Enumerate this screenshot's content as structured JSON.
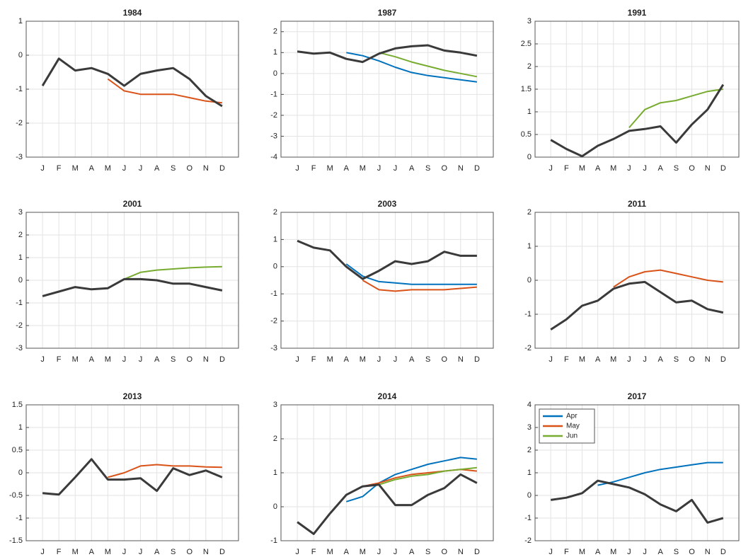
{
  "chart_data": [
    {
      "type": "line",
      "title": "1984",
      "categories": [
        "J",
        "F",
        "M",
        "A",
        "M",
        "J",
        "J",
        "A",
        "S",
        "O",
        "N",
        "D"
      ],
      "ylim": [
        -3,
        1
      ],
      "yticks": [
        -3,
        -2,
        -1,
        0,
        1
      ],
      "grid": true,
      "series": [
        {
          "color": "#d95319",
          "values": [
            null,
            null,
            null,
            null,
            -0.7,
            -1.05,
            -1.15,
            -1.15,
            -1.15,
            -1.25,
            -1.35,
            -1.4
          ]
        },
        {
          "color": "#3a3a3a",
          "values": [
            -0.9,
            -0.1,
            -0.45,
            -0.38,
            -0.55,
            -0.9,
            -0.55,
            -0.45,
            -0.38,
            -0.7,
            -1.2,
            -1.5
          ]
        }
      ]
    },
    {
      "type": "line",
      "title": "1987",
      "categories": [
        "J",
        "F",
        "M",
        "A",
        "M",
        "J",
        "J",
        "A",
        "S",
        "O",
        "N",
        "D"
      ],
      "ylim": [
        -4,
        2.5
      ],
      "yticks": [
        -4,
        -3,
        -2,
        -1,
        0,
        1,
        2
      ],
      "grid": true,
      "series": [
        {
          "color": "#0072bd",
          "values": [
            null,
            null,
            null,
            1.0,
            0.85,
            0.6,
            0.3,
            0.05,
            -0.1,
            -0.2,
            -0.3,
            -0.4
          ]
        },
        {
          "color": "#77ac30",
          "values": [
            null,
            null,
            null,
            null,
            null,
            1.0,
            0.8,
            0.55,
            0.35,
            0.15,
            0.0,
            -0.15
          ]
        },
        {
          "color": "#3a3a3a",
          "values": [
            1.05,
            0.95,
            1.0,
            0.7,
            0.55,
            0.95,
            1.2,
            1.3,
            1.35,
            1.1,
            1.0,
            0.85
          ]
        }
      ]
    },
    {
      "type": "line",
      "title": "1991",
      "categories": [
        "J",
        "F",
        "M",
        "A",
        "M",
        "J",
        "J",
        "A",
        "S",
        "O",
        "N",
        "D"
      ],
      "ylim": [
        0,
        3
      ],
      "yticks": [
        0,
        0.5,
        1,
        1.5,
        2,
        2.5,
        3
      ],
      "grid": true,
      "series": [
        {
          "color": "#77ac30",
          "values": [
            null,
            null,
            null,
            null,
            null,
            0.65,
            1.05,
            1.2,
            1.25,
            1.35,
            1.45,
            1.5
          ]
        },
        {
          "color": "#3a3a3a",
          "values": [
            0.38,
            0.18,
            0.02,
            0.25,
            0.4,
            0.58,
            0.62,
            0.68,
            0.32,
            0.72,
            1.05,
            1.6
          ]
        }
      ]
    },
    {
      "type": "line",
      "title": "2001",
      "categories": [
        "J",
        "F",
        "M",
        "A",
        "M",
        "J",
        "J",
        "A",
        "S",
        "O",
        "N",
        "D"
      ],
      "ylim": [
        -3,
        3
      ],
      "yticks": [
        -3,
        -2,
        -1,
        0,
        1,
        2,
        3
      ],
      "grid": true,
      "series": [
        {
          "color": "#77ac30",
          "values": [
            null,
            null,
            null,
            null,
            null,
            0.05,
            0.35,
            0.45,
            0.5,
            0.55,
            0.58,
            0.6
          ]
        },
        {
          "color": "#3a3a3a",
          "values": [
            -0.7,
            -0.5,
            -0.3,
            -0.4,
            -0.35,
            0.05,
            0.05,
            0.0,
            -0.15,
            -0.15,
            -0.3,
            -0.45
          ]
        }
      ]
    },
    {
      "type": "line",
      "title": "2003",
      "categories": [
        "J",
        "F",
        "M",
        "A",
        "M",
        "J",
        "J",
        "A",
        "S",
        "O",
        "N",
        "D"
      ],
      "ylim": [
        -3,
        2
      ],
      "yticks": [
        -3,
        -2,
        -1,
        0,
        1,
        2
      ],
      "grid": true,
      "series": [
        {
          "color": "#0072bd",
          "values": [
            null,
            null,
            null,
            0.1,
            -0.35,
            -0.55,
            -0.6,
            -0.65,
            -0.65,
            -0.65,
            -0.65,
            -0.65
          ]
        },
        {
          "color": "#d95319",
          "values": [
            null,
            null,
            null,
            null,
            -0.5,
            -0.85,
            -0.9,
            -0.85,
            -0.85,
            -0.85,
            -0.8,
            -0.75
          ]
        },
        {
          "color": "#3a3a3a",
          "values": [
            0.95,
            0.7,
            0.6,
            0.0,
            -0.45,
            -0.15,
            0.2,
            0.1,
            0.2,
            0.55,
            0.4,
            0.4
          ]
        }
      ]
    },
    {
      "type": "line",
      "title": "2011",
      "categories": [
        "J",
        "F",
        "M",
        "A",
        "M",
        "J",
        "J",
        "A",
        "S",
        "O",
        "N",
        "D"
      ],
      "ylim": [
        -2,
        2
      ],
      "yticks": [
        -2,
        -1,
        0,
        1,
        2
      ],
      "grid": true,
      "series": [
        {
          "color": "#d95319",
          "values": [
            null,
            null,
            null,
            null,
            -0.2,
            0.1,
            0.25,
            0.3,
            0.2,
            0.1,
            0.0,
            -0.05
          ]
        },
        {
          "color": "#3a3a3a",
          "values": [
            -1.45,
            -1.15,
            -0.75,
            -0.6,
            -0.25,
            -0.1,
            -0.05,
            -0.35,
            -0.65,
            -0.6,
            -0.85,
            -0.95
          ]
        }
      ]
    },
    {
      "type": "line",
      "title": "2013",
      "categories": [
        "J",
        "F",
        "M",
        "A",
        "M",
        "J",
        "J",
        "A",
        "S",
        "O",
        "N",
        "D"
      ],
      "ylim": [
        -1.5,
        1.5
      ],
      "yticks": [
        -1.5,
        -1,
        -0.5,
        0,
        0.5,
        1,
        1.5
      ],
      "grid": true,
      "series": [
        {
          "color": "#d95319",
          "values": [
            null,
            null,
            null,
            null,
            -0.1,
            0.0,
            0.15,
            0.18,
            0.15,
            0.15,
            0.13,
            0.12
          ]
        },
        {
          "color": "#3a3a3a",
          "values": [
            -0.45,
            -0.48,
            -0.1,
            0.3,
            -0.15,
            -0.15,
            -0.12,
            -0.4,
            0.1,
            -0.05,
            0.05,
            -0.1
          ]
        }
      ]
    },
    {
      "type": "line",
      "title": "2014",
      "categories": [
        "J",
        "F",
        "M",
        "A",
        "M",
        "J",
        "J",
        "A",
        "S",
        "O",
        "N",
        "D"
      ],
      "ylim": [
        -1,
        3
      ],
      "yticks": [
        -1,
        0,
        1,
        2,
        3
      ],
      "grid": true,
      "series": [
        {
          "color": "#0072bd",
          "values": [
            null,
            null,
            null,
            0.15,
            0.3,
            0.7,
            0.95,
            1.1,
            1.25,
            1.35,
            1.45,
            1.4
          ]
        },
        {
          "color": "#d95319",
          "values": [
            null,
            null,
            null,
            null,
            0.6,
            0.7,
            0.85,
            0.95,
            1.0,
            1.05,
            1.1,
            1.05
          ]
        },
        {
          "color": "#77ac30",
          "values": [
            null,
            null,
            null,
            null,
            null,
            0.65,
            0.8,
            0.9,
            0.95,
            1.05,
            1.1,
            1.15
          ]
        },
        {
          "color": "#3a3a3a",
          "values": [
            -0.45,
            -0.8,
            -0.2,
            0.35,
            0.6,
            0.65,
            0.05,
            0.05,
            0.35,
            0.55,
            0.95,
            0.7
          ]
        }
      ]
    },
    {
      "type": "line",
      "title": "2017",
      "categories": [
        "J",
        "F",
        "M",
        "A",
        "M",
        "J",
        "J",
        "A",
        "S",
        "O",
        "N",
        "D"
      ],
      "ylim": [
        -2,
        4
      ],
      "yticks": [
        -2,
        -1,
        0,
        1,
        2,
        3,
        4
      ],
      "grid": true,
      "legend": {
        "position": "upper left",
        "entries": [
          {
            "name": "Apr",
            "color": "#0072bd"
          },
          {
            "name": "May",
            "color": "#d95319"
          },
          {
            "name": "Jun",
            "color": "#77ac30"
          }
        ]
      },
      "series": [
        {
          "color": "#0072bd",
          "values": [
            null,
            null,
            null,
            0.45,
            0.6,
            0.8,
            1.0,
            1.15,
            1.25,
            1.35,
            1.45,
            1.45
          ]
        },
        {
          "color": "#3a3a3a",
          "values": [
            -0.2,
            -0.1,
            0.1,
            0.65,
            0.5,
            0.35,
            0.05,
            -0.4,
            -0.7,
            -0.2,
            -1.2,
            -1.0
          ]
        }
      ]
    }
  ]
}
